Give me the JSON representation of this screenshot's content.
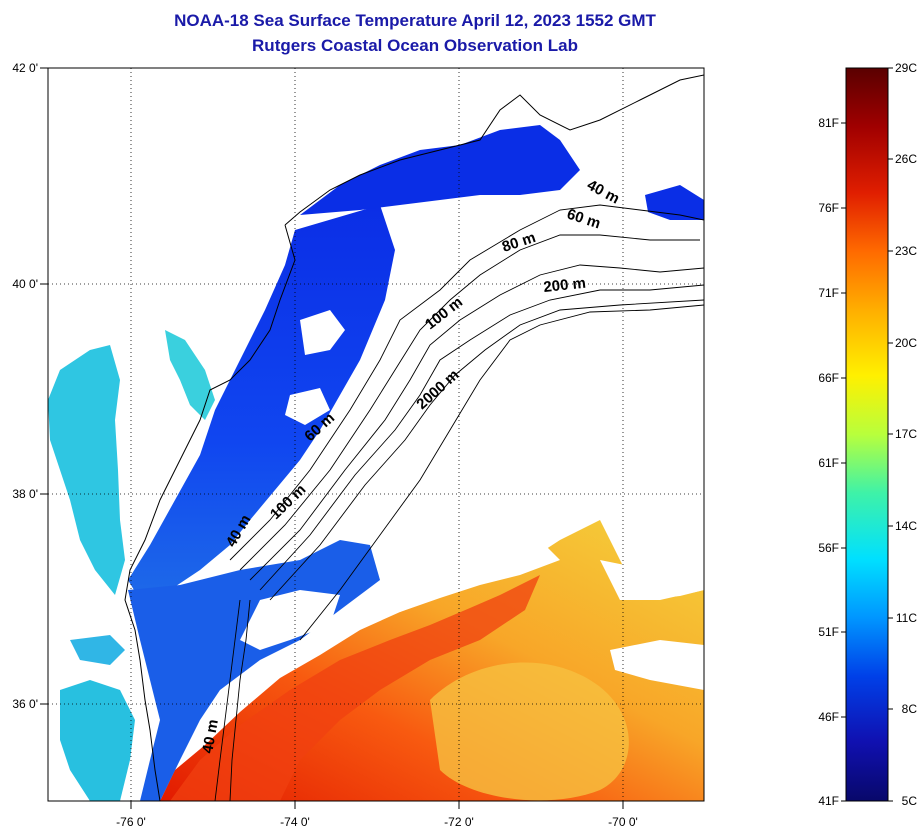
{
  "title": "NOAA-18 Sea Surface Temperature April 12, 2023 1552 GMT",
  "subtitle": "Rutgers Coastal Ocean Observation Lab",
  "map": {
    "lat_labels": [
      "42 0'",
      "40 0'",
      "38 0'",
      "36 0'"
    ],
    "lon_labels": [
      "-76 0'",
      "-74 0'",
      "-72 0'",
      "-70 0'"
    ],
    "depth_labels": [
      "40 m",
      "60 m",
      "80 m",
      "200 m",
      "100 m",
      "2000 m",
      "60 m",
      "100 m",
      "40 m",
      "40 m"
    ]
  },
  "colorbar": {
    "fahrenheit_labels": [
      "81F",
      "76F",
      "71F",
      "66F",
      "61F",
      "56F",
      "51F",
      "46F",
      "41F"
    ],
    "celsius_labels": [
      "29C",
      "26C",
      "23C",
      "20C",
      "17C",
      "14C",
      "11C",
      "8C",
      "5C"
    ],
    "colors": [
      "#5a0000",
      "#a00000",
      "#e01e00",
      "#ff6a00",
      "#ffae00",
      "#fff000",
      "#b8ff3c",
      "#3ef2a8",
      "#00e0ff",
      "#0096ff",
      "#0040e8",
      "#1010b0",
      "#08086a"
    ]
  },
  "colors": {
    "title": "#1a1aa8",
    "cold_water": "#0a3cf0",
    "bay_water": "#30c8e8",
    "warm_water": "#f55a14",
    "gulf_yellow": "#f6c83c",
    "land": "#ffffff"
  }
}
